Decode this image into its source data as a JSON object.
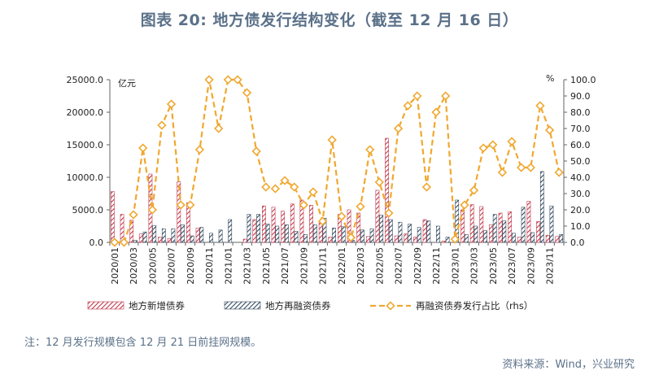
{
  "title": "图表 20: 地方债发行结构变化（截至 12 月 16 日）",
  "note": "注：12 月发行规模包含 12 月 21 日前挂网规模。",
  "source": "资料来源：Wind，兴业研究",
  "colors": {
    "new_bond": "#c0394b",
    "refi_bond": "#34495e",
    "ratio_line": "#f0a830"
  },
  "chart_data": {
    "type": "bar+line",
    "left_unit": "亿元",
    "right_unit": "%",
    "y_left_range": [
      0,
      25000
    ],
    "y_left_ticks": [
      "0.0",
      "5000.0",
      "10000.0",
      "15000.0",
      "20000.0",
      "25000.0"
    ],
    "y_right_range": [
      0,
      100
    ],
    "y_right_ticks": [
      "0.0",
      "10.0",
      "20.0",
      "30.0",
      "40.0",
      "50.0",
      "60.0",
      "70.0",
      "80.0",
      "90.0",
      "100.0"
    ],
    "x_tick_labels": [
      "2020/01",
      "2020/03",
      "2020/05",
      "2020/07",
      "2020/09",
      "2020/11",
      "2021/01",
      "2021/03",
      "2021/05",
      "2021/07",
      "2021/09",
      "2021/11",
      "2022/01",
      "2022/03",
      "2022/05",
      "2022/07",
      "2022/09",
      "2022/11",
      "2023/01",
      "2023/03",
      "2023/05",
      "2023/07",
      "2023/09",
      "2023/11"
    ],
    "months": [
      "2020/01",
      "2020/02",
      "2020/03",
      "2020/04",
      "2020/05",
      "2020/06",
      "2020/07",
      "2020/08",
      "2020/09",
      "2020/10",
      "2020/11",
      "2020/12",
      "2021/01",
      "2021/02",
      "2021/03",
      "2021/04",
      "2021/05",
      "2021/06",
      "2021/07",
      "2021/08",
      "2021/09",
      "2021/10",
      "2021/11",
      "2021/12",
      "2022/01",
      "2022/02",
      "2022/03",
      "2022/04",
      "2022/05",
      "2022/06",
      "2022/07",
      "2022/08",
      "2022/09",
      "2022/10",
      "2022/11",
      "2022/12",
      "2023/01",
      "2023/02",
      "2023/03",
      "2023/04",
      "2023/05",
      "2023/06",
      "2023/07",
      "2023/08",
      "2023/09",
      "2023/10",
      "2023/11",
      "2023/12"
    ],
    "series": [
      {
        "name": "地方新增债券",
        "type": "bar",
        "values": [
          7800,
          4300,
          3400,
          1300,
          10500,
          800,
          600,
          9300,
          6100,
          2200,
          0,
          0,
          0,
          0,
          500,
          3500,
          5600,
          5400,
          4800,
          5900,
          6500,
          5700,
          3000,
          800,
          4300,
          5000,
          4500,
          900,
          8000,
          16000,
          1000,
          1300,
          800,
          3500,
          0,
          200,
          0,
          5000,
          5800,
          5500,
          2700,
          4500,
          4700,
          800,
          6300,
          3200,
          1100,
          900
        ]
      },
      {
        "name": "地方再融资债券",
        "type": "bar",
        "values": [
          0,
          0,
          300,
          1600,
          2600,
          2100,
          2100,
          2700,
          1000,
          2300,
          1400,
          1900,
          3500,
          0,
          4300,
          4300,
          2800,
          2500,
          2700,
          1700,
          1200,
          2700,
          3700,
          2200,
          2400,
          300,
          1900,
          2100,
          4200,
          3500,
          3100,
          2800,
          2300,
          3300,
          2500,
          800,
          6500,
          1200,
          2500,
          1800,
          4300,
          3300,
          1400,
          5400,
          1500,
          10900,
          5600,
          1200
        ]
      },
      {
        "name": "再融资债券发行占比（rhs）",
        "type": "line",
        "axis": "right",
        "values": [
          0,
          0,
          17,
          58,
          20,
          72,
          85,
          23,
          23,
          57,
          100,
          70,
          100,
          100,
          92,
          56,
          34,
          33,
          38,
          34,
          23,
          31,
          13,
          63,
          16,
          3,
          22,
          57,
          37,
          18,
          70,
          84,
          90,
          34,
          80,
          90,
          2,
          23,
          32,
          58,
          60,
          43,
          62,
          46,
          46,
          84,
          69,
          43
        ]
      }
    ]
  }
}
